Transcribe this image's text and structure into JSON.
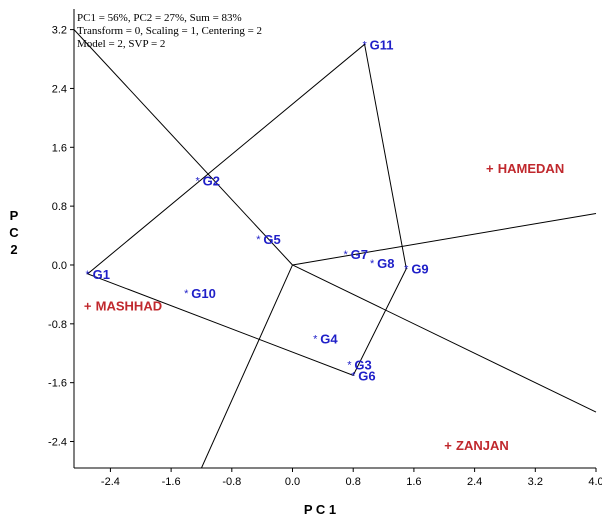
{
  "chart_data": {
    "type": "scatter",
    "title_lines": [
      "PC1 = 56%, PC2 = 27%, Sum = 83%",
      "Transform = 0, Scaling = 1, Centering = 2",
      "Model = 2, SVP = 2"
    ],
    "xlabel": "P C 1",
    "ylabel_chars": [
      "P",
      "C",
      "2"
    ],
    "xlim": [
      -2.88,
      4.0
    ],
    "ylim": [
      -2.76,
      3.48
    ],
    "xticks": [
      "-2.4",
      "-1.6",
      "-0.8",
      "0.0",
      "0.8",
      "1.6",
      "2.4",
      "3.2",
      "4.0"
    ],
    "yticks": [
      "3.2",
      "2.4",
      "1.6",
      "0.8",
      "0.0",
      "-0.8",
      "-1.6",
      "-2.4"
    ],
    "grid": false,
    "genotypes": [
      {
        "name": "G1",
        "x": -2.7,
        "y": -0.12
      },
      {
        "name": "G2",
        "x": -1.25,
        "y": 1.15
      },
      {
        "name": "G3",
        "x": 0.75,
        "y": -1.35
      },
      {
        "name": "G4",
        "x": 0.3,
        "y": -1.0
      },
      {
        "name": "G5",
        "x": -0.45,
        "y": 0.35
      },
      {
        "name": "G6",
        "x": 0.8,
        "y": -1.5
      },
      {
        "name": "G7",
        "x": 0.7,
        "y": 0.15
      },
      {
        "name": "G8",
        "x": 1.05,
        "y": 0.03
      },
      {
        "name": "G9",
        "x": 1.5,
        "y": -0.05
      },
      {
        "name": "G10",
        "x": -1.4,
        "y": -0.38
      },
      {
        "name": "G11",
        "x": 0.95,
        "y": 3.0
      }
    ],
    "environments": [
      {
        "name": "HAMEDAN",
        "x": 2.6,
        "y": 1.32
      },
      {
        "name": "MASHHAD",
        "x": -2.7,
        "y": -0.55
      },
      {
        "name": "ZANJAN",
        "x": 2.05,
        "y": -2.45
      }
    ],
    "env_marker": "+",
    "genotype_marker": "*",
    "polygon_vertices": [
      "G11",
      "G9",
      "G6",
      "G1"
    ],
    "polygon_vertex_coords": [
      [
        0.95,
        3.0
      ],
      [
        1.5,
        -0.05
      ],
      [
        0.8,
        -1.5
      ],
      [
        -2.7,
        -0.12
      ]
    ],
    "rays_end": [
      [
        -2.88,
        3.2
      ],
      [
        4.0,
        0.7
      ],
      [
        4.0,
        -2.0
      ],
      [
        -1.2,
        -2.76
      ]
    ],
    "colors": {
      "genotype": "#1f1fc8",
      "environment": "#c0282d",
      "lines": "#000000"
    }
  }
}
